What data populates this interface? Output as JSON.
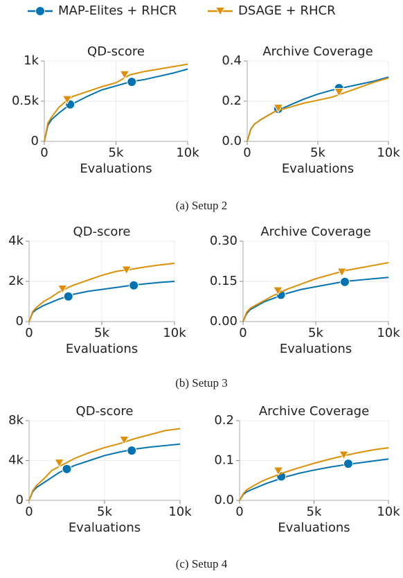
{
  "legend": [
    {
      "name": "MAP-Elites + RHCR",
      "color": "#0173b2",
      "marker": "circle"
    },
    {
      "name": "DSAGE + RHCR",
      "color": "#de8f05",
      "marker": "triangle"
    }
  ],
  "captions": [
    "(a) Setup 2",
    "(b) Setup 3",
    "(c) Setup 4"
  ],
  "chart_data": [
    {
      "type": "line",
      "title": "QD-score",
      "xlabel": "Evaluations",
      "x": [
        0,
        250,
        500,
        1000,
        1500,
        2000,
        3000,
        4000,
        5000,
        6000,
        7000,
        8000,
        9000,
        10000
      ],
      "xlim": [
        0,
        10000
      ],
      "xticks": [
        {
          "value": 0,
          "label": "0"
        },
        {
          "value": 5000,
          "label": "5k"
        },
        {
          "value": 10000,
          "label": "10k"
        }
      ],
      "ylim": [
        0,
        1000
      ],
      "yticks": [
        {
          "value": 0,
          "label": "0"
        },
        {
          "value": 500,
          "label": "0.5k"
        },
        {
          "value": 1000,
          "label": "1k"
        }
      ],
      "series": [
        {
          "values": [
            0,
            200,
            270,
            350,
            420,
            470,
            560,
            640,
            690,
            740,
            770,
            810,
            850,
            900
          ],
          "markers": {
            "x": [
              1800,
              6100
            ],
            "values": [
              460,
              740
            ]
          }
        },
        {
          "values": [
            0,
            230,
            300,
            420,
            500,
            560,
            620,
            680,
            730,
            830,
            870,
            900,
            930,
            960
          ],
          "markers": {
            "x": [
              1600,
              5600
            ],
            "values": [
              520,
              830
            ]
          }
        }
      ]
    },
    {
      "type": "line",
      "title": "Archive Coverage",
      "xlabel": "Evaluations",
      "x": [
        0,
        250,
        500,
        1000,
        1500,
        2000,
        3000,
        4000,
        5000,
        6000,
        7000,
        8000,
        9000,
        10000
      ],
      "xlim": [
        0,
        10000
      ],
      "xticks": [
        {
          "value": 0,
          "label": "0"
        },
        {
          "value": 5000,
          "label": "5k"
        },
        {
          "value": 10000,
          "label": "10k"
        }
      ],
      "ylim": [
        0,
        0.4
      ],
      "yticks": [
        {
          "value": 0,
          "label": "0.0"
        },
        {
          "value": 0.2,
          "label": "0.2"
        },
        {
          "value": 0.4,
          "label": "0.4"
        }
      ],
      "series": [
        {
          "values": [
            0,
            0.06,
            0.085,
            0.11,
            0.13,
            0.15,
            0.18,
            0.21,
            0.235,
            0.255,
            0.27,
            0.285,
            0.3,
            0.32
          ],
          "markers": {
            "x": [
              2200,
              6500
            ],
            "values": [
              0.162,
              0.265
            ]
          }
        },
        {
          "values": [
            0,
            0.06,
            0.085,
            0.11,
            0.13,
            0.15,
            0.17,
            0.19,
            0.205,
            0.22,
            0.245,
            0.27,
            0.295,
            0.315
          ],
          "markers": {
            "x": [
              2200,
              6500
            ],
            "values": [
              0.165,
              0.245
            ]
          }
        }
      ]
    },
    {
      "type": "line",
      "title": "QD-score",
      "xlabel": "Evaluations",
      "x": [
        0,
        250,
        500,
        1000,
        1500,
        2000,
        3000,
        4000,
        5000,
        6000,
        7000,
        8000,
        9000,
        10000
      ],
      "xlim": [
        0,
        10000
      ],
      "xticks": [
        {
          "value": 0,
          "label": "0"
        },
        {
          "value": 5000,
          "label": "5k"
        },
        {
          "value": 10000,
          "label": "10k"
        }
      ],
      "ylim": [
        0,
        4000
      ],
      "yticks": [
        {
          "value": 0,
          "label": "0"
        },
        {
          "value": 2000,
          "label": "2k"
        },
        {
          "value": 4000,
          "label": "4k"
        }
      ],
      "series": [
        {
          "values": [
            0,
            450,
            600,
            800,
            950,
            1100,
            1350,
            1500,
            1600,
            1700,
            1800,
            1880,
            1950,
            2000
          ],
          "markers": {
            "x": [
              2700,
              7200
            ],
            "values": [
              1250,
              1800
            ]
          }
        },
        {
          "values": [
            0,
            500,
            700,
            1000,
            1200,
            1450,
            1800,
            2050,
            2300,
            2500,
            2600,
            2720,
            2820,
            2900
          ],
          "markers": {
            "x": [
              2300,
              6700
            ],
            "values": [
              1620,
              2570
            ]
          }
        }
      ]
    },
    {
      "type": "line",
      "title": "Archive Coverage",
      "xlabel": "Evaluations",
      "x": [
        0,
        250,
        500,
        1000,
        1500,
        2000,
        3000,
        4000,
        5000,
        6000,
        7000,
        8000,
        9000,
        10000
      ],
      "xlim": [
        0,
        10000
      ],
      "xticks": [
        {
          "value": 0,
          "label": "0"
        },
        {
          "value": 5000,
          "label": "5k"
        },
        {
          "value": 10000,
          "label": "10k"
        }
      ],
      "ylim": [
        0,
        0.3
      ],
      "yticks": [
        {
          "value": 0,
          "label": "0.00"
        },
        {
          "value": 0.15,
          "label": "0.15"
        },
        {
          "value": 0.3,
          "label": "0.30"
        }
      ],
      "series": [
        {
          "values": [
            0,
            0.03,
            0.045,
            0.06,
            0.075,
            0.085,
            0.105,
            0.12,
            0.13,
            0.14,
            0.15,
            0.155,
            0.16,
            0.165
          ],
          "markers": {
            "x": [
              2600,
              7000
            ],
            "values": [
              0.1,
              0.148
            ]
          }
        },
        {
          "values": [
            0,
            0.035,
            0.05,
            0.065,
            0.08,
            0.095,
            0.12,
            0.14,
            0.16,
            0.175,
            0.19,
            0.2,
            0.21,
            0.22
          ],
          "markers": {
            "x": [
              2400,
              6800
            ],
            "values": [
              0.115,
              0.185
            ]
          }
        }
      ]
    },
    {
      "type": "line",
      "title": "QD-score",
      "xlabel": "Evaluations",
      "x": [
        0,
        250,
        500,
        1000,
        1500,
        2000,
        3000,
        4000,
        5000,
        6000,
        7000,
        8000,
        9000,
        10000
      ],
      "xlim": [
        0,
        10000
      ],
      "xticks": [
        {
          "value": 0,
          "label": "0"
        },
        {
          "value": 5000,
          "label": "5k"
        },
        {
          "value": 10000,
          "label": "10k"
        }
      ],
      "ylim": [
        0,
        8000
      ],
      "yticks": [
        {
          "value": 0,
          "label": "0"
        },
        {
          "value": 4000,
          "label": "4k"
        },
        {
          "value": 8000,
          "label": "8k"
        }
      ],
      "series": [
        {
          "values": [
            0,
            900,
            1300,
            1800,
            2300,
            2800,
            3500,
            4000,
            4500,
            4850,
            5150,
            5350,
            5500,
            5650
          ],
          "markers": {
            "x": [
              2500,
              6800
            ],
            "values": [
              3150,
              5000
            ]
          }
        },
        {
          "values": [
            0,
            1000,
            1500,
            2200,
            3000,
            3400,
            4200,
            4800,
            5300,
            5700,
            6200,
            6600,
            7000,
            7200
          ],
          "markers": {
            "x": [
              2000,
              6300
            ],
            "values": [
              3750,
              6050
            ]
          }
        }
      ]
    },
    {
      "type": "line",
      "title": "Archive Coverage",
      "xlabel": "Evaluations",
      "x": [
        0,
        250,
        500,
        1000,
        1500,
        2000,
        3000,
        4000,
        5000,
        6000,
        7000,
        8000,
        9000,
        10000
      ],
      "xlim": [
        0,
        10000
      ],
      "xticks": [
        {
          "value": 0,
          "label": "0"
        },
        {
          "value": 5000,
          "label": "5k"
        },
        {
          "value": 10000,
          "label": "10k"
        }
      ],
      "ylim": [
        0,
        0.2
      ],
      "yticks": [
        {
          "value": 0,
          "label": "0.0"
        },
        {
          "value": 0.1,
          "label": "0.1"
        },
        {
          "value": 0.2,
          "label": "0.2"
        }
      ],
      "series": [
        {
          "values": [
            0,
            0.015,
            0.022,
            0.03,
            0.038,
            0.045,
            0.058,
            0.068,
            0.076,
            0.083,
            0.089,
            0.094,
            0.099,
            0.104
          ],
          "markers": {
            "x": [
              2800,
              7300
            ],
            "values": [
              0.06,
              0.092
            ]
          }
        },
        {
          "values": [
            0,
            0.017,
            0.027,
            0.038,
            0.048,
            0.056,
            0.07,
            0.082,
            0.093,
            0.103,
            0.112,
            0.12,
            0.127,
            0.132
          ],
          "markers": {
            "x": [
              2600,
              7000
            ],
            "values": [
              0.074,
              0.114
            ]
          }
        }
      ]
    }
  ]
}
